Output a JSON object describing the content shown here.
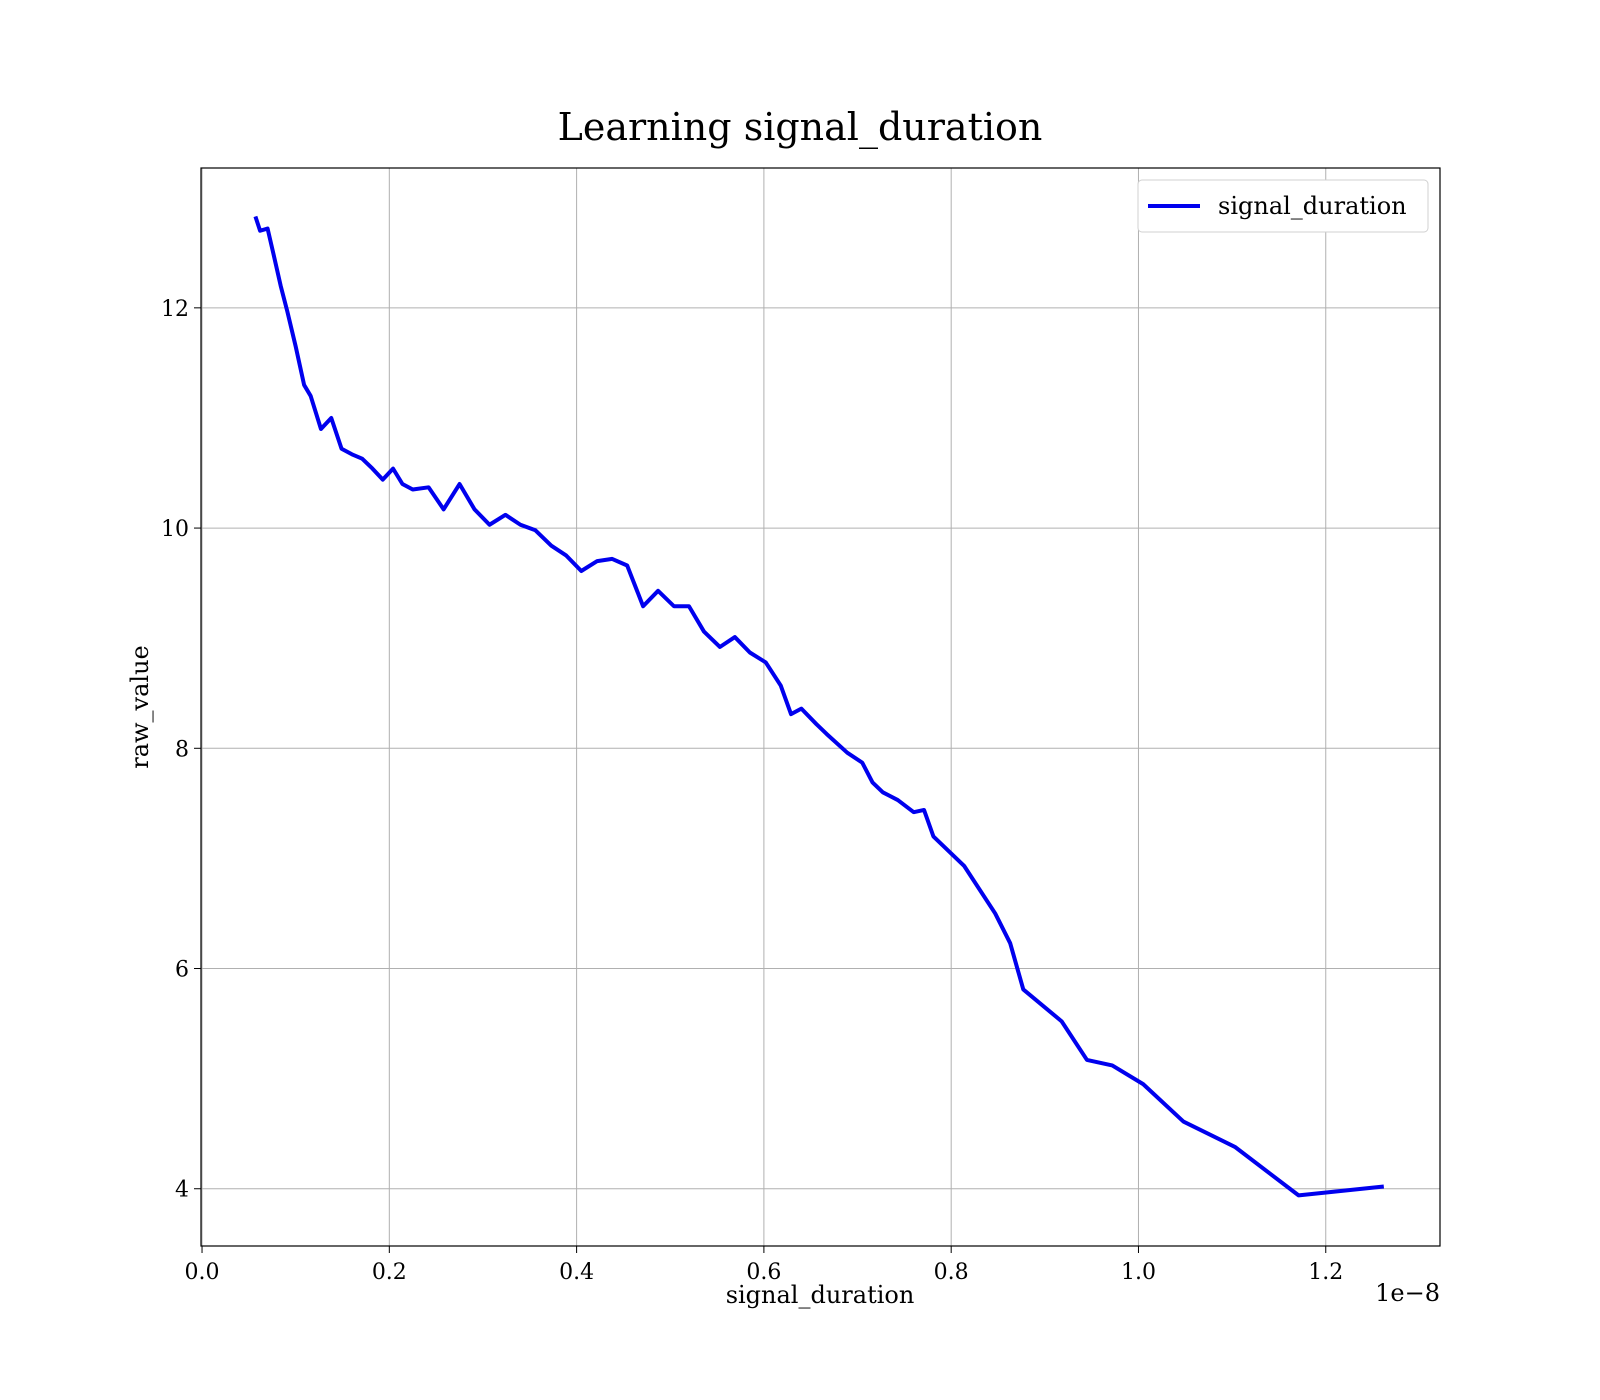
{
  "chart_data": {
    "type": "line",
    "title": "Learning signal_duration",
    "xlabel": "signal_duration",
    "ylabel": "raw_value",
    "x_offset_label": "1e−8",
    "x": [
      0.057,
      0.062,
      0.07,
      0.076,
      0.084,
      0.091,
      0.1,
      0.109,
      0.116,
      0.127,
      0.138,
      0.149,
      0.16,
      0.171,
      0.182,
      0.193,
      0.204,
      0.214,
      0.225,
      0.242,
      0.258,
      0.275,
      0.291,
      0.307,
      0.324,
      0.34,
      0.356,
      0.373,
      0.389,
      0.405,
      0.422,
      0.438,
      0.454,
      0.471,
      0.487,
      0.504,
      0.52,
      0.536,
      0.553,
      0.569,
      0.585,
      0.602,
      0.618,
      0.629,
      0.64,
      0.656,
      0.667,
      0.689,
      0.705,
      0.716,
      0.727,
      0.743,
      0.76,
      0.771,
      0.781,
      0.814,
      0.847,
      0.863,
      0.877,
      0.918,
      0.945,
      0.972,
      1.005,
      1.048,
      1.103,
      1.171,
      1.262
    ],
    "series": [
      {
        "name": "signal_duration",
        "color": "#0000ee",
        "values": [
          12.83,
          12.7,
          12.72,
          12.5,
          12.2,
          11.97,
          11.65,
          11.3,
          11.2,
          10.9,
          11.0,
          10.72,
          10.67,
          10.63,
          10.54,
          10.44,
          10.54,
          10.4,
          10.35,
          10.37,
          10.17,
          10.4,
          10.17,
          10.03,
          10.12,
          10.03,
          9.98,
          9.84,
          9.75,
          9.61,
          9.7,
          9.72,
          9.66,
          9.29,
          9.43,
          9.29,
          9.29,
          9.06,
          8.92,
          9.01,
          8.87,
          8.78,
          8.57,
          8.31,
          8.36,
          8.22,
          8.13,
          7.96,
          7.87,
          7.69,
          7.6,
          7.53,
          7.42,
          7.44,
          7.2,
          6.93,
          6.5,
          6.23,
          5.81,
          5.52,
          5.17,
          5.12,
          4.95,
          4.61,
          4.38,
          3.94,
          4.02
        ]
      }
    ],
    "xlim": [
      -0.0011,
      1.322
    ],
    "ylim": [
      3.48,
      13.27
    ],
    "xticks": [
      {
        "value": 0,
        "label": "0.0"
      },
      0.2,
      0.4,
      0.6,
      0.8,
      {
        "value": 1,
        "label": "1.0"
      },
      1.2
    ],
    "yticks": [
      4,
      6,
      8,
      10,
      12
    ],
    "grid": true,
    "legend": "upper right"
  }
}
